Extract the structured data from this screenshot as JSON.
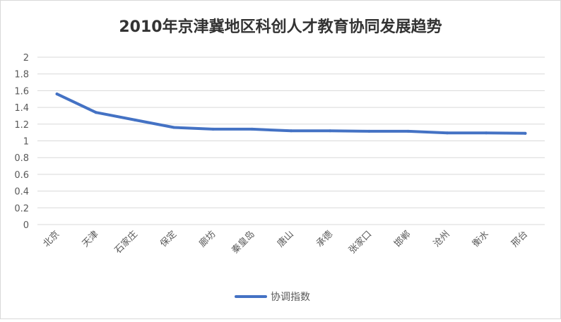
{
  "chart_data": {
    "type": "line",
    "title": "2010年京津冀地区科创人才教育协同发展趋势",
    "xlabel": "",
    "ylabel": "",
    "categories": [
      "北京",
      "天津",
      "石家庄",
      "保定",
      "廊坊",
      "秦皇岛",
      "唐山",
      "承德",
      "张家口",
      "邯郸",
      "沧州",
      "衡水",
      "邢台"
    ],
    "series": [
      {
        "name": "协调指数",
        "values": [
          1.56,
          1.34,
          1.25,
          1.16,
          1.14,
          1.14,
          1.12,
          1.12,
          1.115,
          1.115,
          1.095,
          1.095,
          1.09
        ]
      }
    ],
    "ylim": [
      0,
      2
    ],
    "yticks": [
      0,
      0.2,
      0.4,
      0.6,
      0.8,
      1,
      1.2,
      1.4,
      1.6,
      1.8,
      2
    ],
    "ytick_labels": [
      "0",
      "0.2",
      "0.4",
      "0.6",
      "0.8",
      "1",
      "1.2",
      "1.4",
      "1.6",
      "1.8",
      "2"
    ],
    "grid": true,
    "legend_position": "bottom",
    "series_color": "#4472c4"
  }
}
